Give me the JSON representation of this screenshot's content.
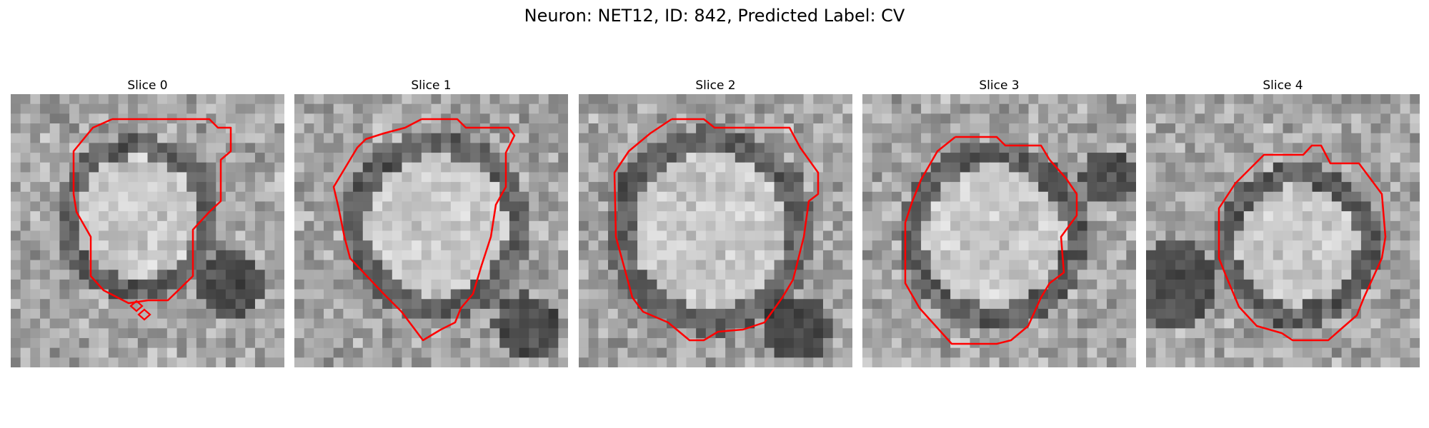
{
  "figure": {
    "title": "Neuron: NET12, ID: 842, Predicted Label: CV"
  },
  "panels": [
    {
      "title": "Slice 0"
    },
    {
      "title": "Slice 1"
    },
    {
      "title": "Slice 2"
    },
    {
      "title": "Slice 3"
    },
    {
      "title": "Slice 4"
    }
  ],
  "contour_color": "#ff0000",
  "colormap": "gray"
}
